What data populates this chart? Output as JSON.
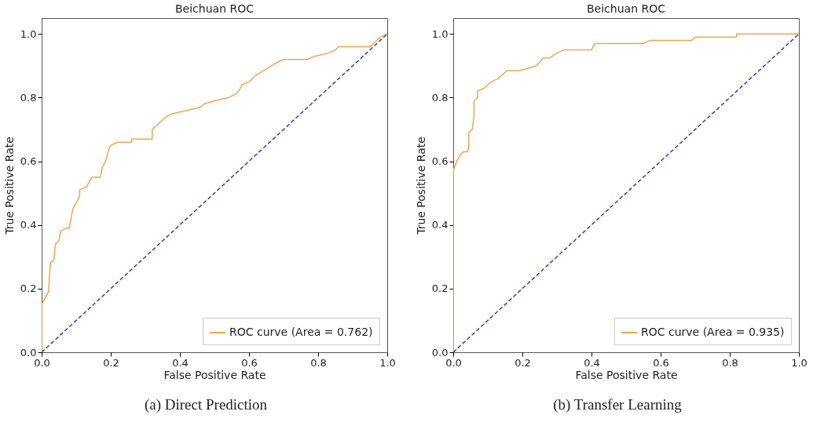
{
  "chart_data": [
    {
      "type": "line",
      "title": "Beichuan ROC",
      "xlabel": "False Positive Rate",
      "ylabel": "True Positive Rate",
      "annotations": [
        "(a) Direct Prediction"
      ],
      "xlim": [
        0,
        1
      ],
      "ylim": [
        0,
        1.05
      ],
      "xticks": [
        {
          "value": 0,
          "label": "0.0"
        },
        {
          "value": 0.2,
          "label": "0.2"
        },
        {
          "value": 0.4,
          "label": "0.4"
        },
        {
          "value": 0.6,
          "label": "0.6"
        },
        {
          "value": 0.8,
          "label": "0.8"
        },
        {
          "value": 1,
          "label": "1.0"
        }
      ],
      "yticks": [
        {
          "value": 0,
          "label": "0.0"
        },
        {
          "value": 0.2,
          "label": "0.2"
        },
        {
          "value": 0.4,
          "label": "0.4"
        },
        {
          "value": 0.6,
          "label": "0.6"
        },
        {
          "value": 0.8,
          "label": "0.8"
        },
        {
          "value": 1,
          "label": "1.0"
        }
      ],
      "grid": false,
      "legend": "bottom right",
      "series": [
        {
          "name": "ROC curve (Area = 0.762)",
          "color": "#f5a54e",
          "x": [
            0,
            0,
            0.01,
            0.02,
            0.025,
            0.035,
            0.04,
            0.05,
            0.055,
            0.07,
            0.08,
            0.085,
            0.09,
            0.1,
            0.11,
            0.11,
            0.13,
            0.14,
            0.145,
            0.17,
            0.175,
            0.185,
            0.195,
            0.2,
            0.22,
            0.26,
            0.26,
            0.32,
            0.32,
            0.34,
            0.36,
            0.38,
            0.42,
            0.46,
            0.47,
            0.5,
            0.54,
            0.56,
            0.57,
            0.58,
            0.6,
            0.62,
            0.65,
            0.68,
            0.7,
            0.77,
            0.79,
            0.83,
            0.85,
            0.86,
            0.95,
            0.97,
            0.98,
            1
          ],
          "values": [
            0,
            0.15,
            0.17,
            0.19,
            0.28,
            0.29,
            0.34,
            0.35,
            0.38,
            0.39,
            0.39,
            0.42,
            0.45,
            0.47,
            0.49,
            0.51,
            0.52,
            0.54,
            0.55,
            0.55,
            0.58,
            0.6,
            0.64,
            0.65,
            0.66,
            0.66,
            0.67,
            0.67,
            0.7,
            0.72,
            0.74,
            0.75,
            0.76,
            0.77,
            0.78,
            0.79,
            0.8,
            0.81,
            0.82,
            0.84,
            0.85,
            0.87,
            0.89,
            0.91,
            0.92,
            0.92,
            0.93,
            0.94,
            0.95,
            0.96,
            0.96,
            0.98,
            0.99,
            1
          ],
          "line_style": "solid"
        },
        {
          "color": "#3b3bb5",
          "x": [
            0,
            1
          ],
          "values": [
            0,
            1
          ],
          "line_style": "dashed"
        }
      ]
    },
    {
      "type": "line",
      "title": "Beichuan ROC",
      "xlabel": "False Positive Rate",
      "ylabel": "True Positive Rate",
      "annotations": [
        "(b) Transfer Learning"
      ],
      "xlim": [
        0,
        1
      ],
      "ylim": [
        0,
        1.05
      ],
      "xticks": [
        {
          "value": 0,
          "label": "0.0"
        },
        {
          "value": 0.2,
          "label": "0.2"
        },
        {
          "value": 0.4,
          "label": "0.4"
        },
        {
          "value": 0.6,
          "label": "0.6"
        },
        {
          "value": 0.8,
          "label": "0.8"
        },
        {
          "value": 1,
          "label": "1.0"
        }
      ],
      "yticks": [
        {
          "value": 0,
          "label": "0.0"
        },
        {
          "value": 0.2,
          "label": "0.2"
        },
        {
          "value": 0.4,
          "label": "0.4"
        },
        {
          "value": 0.6,
          "label": "0.6"
        },
        {
          "value": 0.8,
          "label": "0.8"
        },
        {
          "value": 1,
          "label": "1.0"
        }
      ],
      "grid": false,
      "legend": "bottom right",
      "series": [
        {
          "name": "ROC curve (Area = 0.935)",
          "color": "#f5a54e",
          "x": [
            0,
            0,
            0,
            0.01,
            0.02,
            0.03,
            0.04,
            0.045,
            0.045,
            0.055,
            0.06,
            0.06,
            0.07,
            0.07,
            0.09,
            0.1,
            0.11,
            0.13,
            0.14,
            0.155,
            0.19,
            0.21,
            0.24,
            0.25,
            0.26,
            0.28,
            0.3,
            0.32,
            0.4,
            0.41,
            0.55,
            0.57,
            0.69,
            0.7,
            0.82,
            0.82,
            1
          ],
          "values": [
            0,
            0.47,
            0.57,
            0.6,
            0.62,
            0.63,
            0.63,
            0.64,
            0.69,
            0.7,
            0.74,
            0.79,
            0.8,
            0.82,
            0.83,
            0.84,
            0.85,
            0.86,
            0.87,
            0.885,
            0.885,
            0.89,
            0.9,
            0.91,
            0.925,
            0.925,
            0.94,
            0.95,
            0.95,
            0.97,
            0.97,
            0.98,
            0.98,
            0.99,
            0.99,
            1,
            1
          ],
          "line_style": "solid"
        },
        {
          "color": "#3b3bb5",
          "x": [
            0,
            1
          ],
          "values": [
            0,
            1
          ],
          "line_style": "dashed"
        }
      ]
    }
  ]
}
